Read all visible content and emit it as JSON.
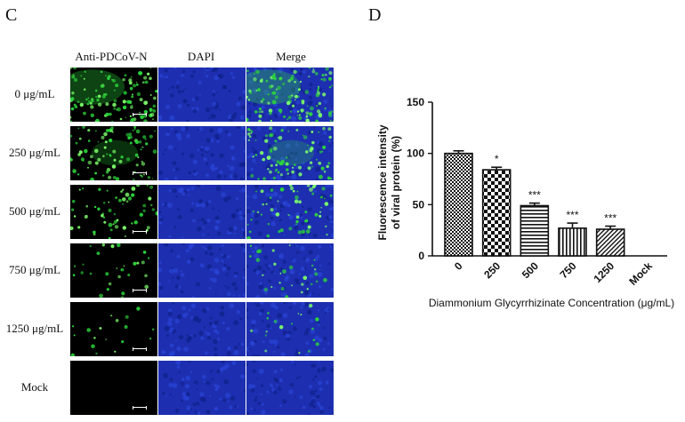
{
  "panel_c": {
    "letter": "C",
    "columns": [
      "Anti-PDCoV-N",
      "DAPI",
      "Merge"
    ],
    "rows": [
      "0 μg/mL",
      "250 μg/mL",
      "500 μg/mL",
      "750 μg/mL",
      "1250 μg/mL",
      "Mock"
    ],
    "green_signal_level": [
      0.9,
      0.65,
      0.45,
      0.22,
      0.14,
      0.0
    ],
    "colors": {
      "gfp": "#2bd43a",
      "dapi": "#1d2fb0",
      "background": "#000000"
    }
  },
  "panel_d": {
    "letter": "D"
  },
  "chart_data": {
    "type": "bar",
    "categories": [
      "0",
      "250",
      "500",
      "750",
      "1250",
      "Mock"
    ],
    "values": [
      100,
      84,
      49,
      27,
      26,
      0
    ],
    "errors": [
      2.5,
      2.5,
      2.5,
      5,
      3,
      0
    ],
    "significance": [
      "",
      "*",
      "***",
      "***",
      "***",
      ""
    ],
    "patterns": [
      "checker-fine",
      "checker-coarse",
      "horizontal",
      "vertical",
      "diagonal",
      "none"
    ],
    "xlabel": "Diammonium Glycyrrhizinate Concentration (μg/mL)",
    "ylabel": [
      "Fluorescence intensity",
      "of viral protein (%)"
    ],
    "ylim": [
      0,
      150
    ],
    "yticks": [
      0,
      50,
      100,
      150
    ],
    "grid": false,
    "legend": "none"
  }
}
